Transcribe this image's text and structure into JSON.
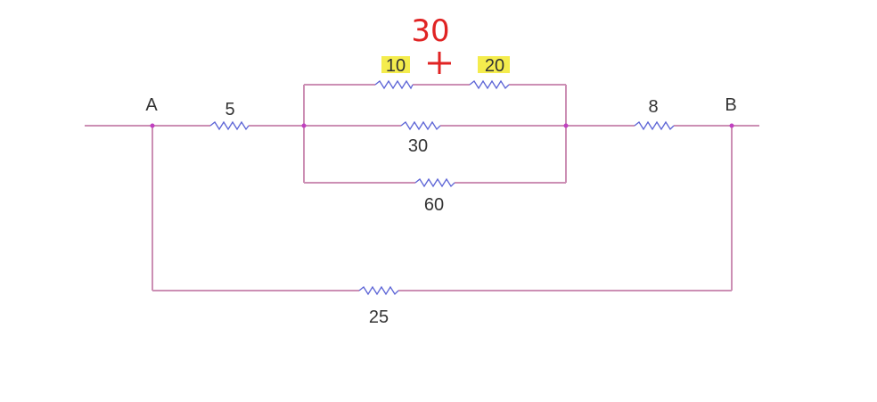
{
  "nodes": {
    "a": "A",
    "b": "B"
  },
  "resistors": {
    "r_series_left": "5",
    "r_top_1": "10",
    "r_top_2": "20",
    "r_middle": "30",
    "r_bottom": "60",
    "r_series_right": "8",
    "r_bypass": "25"
  },
  "annotation": {
    "sum_value": "30",
    "plus_symbol": "+",
    "color": "#e02323",
    "highlight_color": "#f3ea3a"
  }
}
